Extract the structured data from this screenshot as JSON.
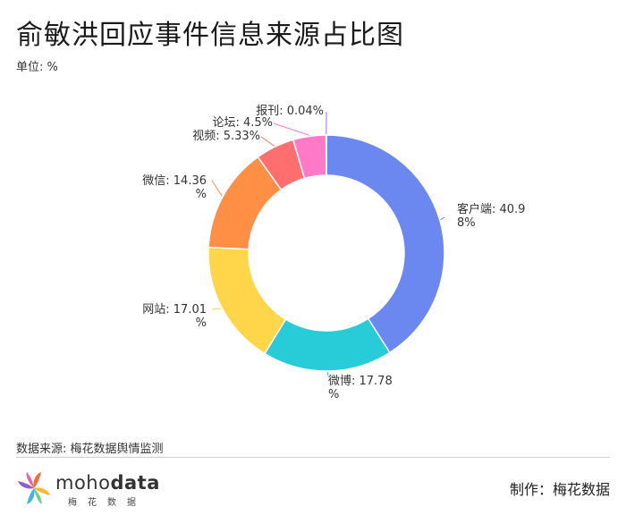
{
  "header": {
    "title": "俞敏洪回应事件信息来源占比图",
    "unit": "单位: %"
  },
  "chart_data": {
    "type": "pie",
    "categories": [
      "客户端",
      "微博",
      "网站",
      "微信",
      "视频",
      "论坛",
      "报刊"
    ],
    "values": [
      40.98,
      17.78,
      17.01,
      14.36,
      5.33,
      4.5,
      0.04
    ],
    "labels": [
      [
        "客户端: 40.9",
        "8%"
      ],
      [
        "微博: 17.78",
        "%"
      ],
      [
        "网站: 17.01",
        "%"
      ],
      [
        "微信: 14.36",
        "%"
      ],
      [
        "视频: 5.33%"
      ],
      [
        "论坛: 4.5%"
      ],
      [
        "报刊: 0.04%"
      ]
    ],
    "colors": [
      "#6b87f0",
      "#27ccd8",
      "#ffd54a",
      "#ff8f45",
      "#ff6f6f",
      "#ff79c6",
      "#a56cf0"
    ],
    "label_colors": [
      "#333333",
      "#333333",
      "#333333",
      "#333333",
      "#333333",
      "#333333",
      "#333333"
    ],
    "donut": true
  },
  "footer": {
    "source": "数据来源: 梅花数据舆情监测",
    "logo_mo": "moho",
    "logo_data": "data",
    "logo_sub": "梅花数据",
    "maker": "制作：梅花数据"
  }
}
